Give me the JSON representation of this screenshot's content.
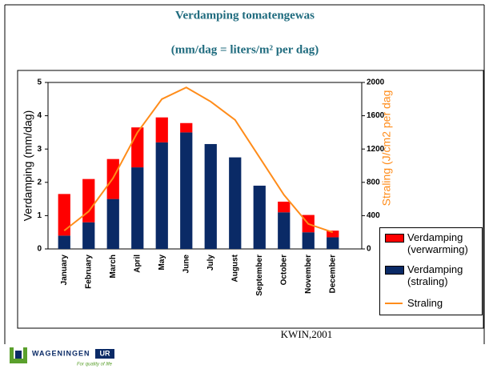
{
  "chart_data": {
    "type": "bar",
    "stacked": true,
    "title": "Verdamping tomatengewas",
    "subtitle": "(mm/dag = liters/m² per dag)",
    "ylabel": "Verdamping (mm/dag)",
    "y2label": "Straling (J/cm2 per dag",
    "categories": [
      "January",
      "February",
      "March",
      "April",
      "May",
      "June",
      "July",
      "August",
      "September",
      "October",
      "November",
      "December"
    ],
    "series": [
      {
        "name": "Verdamping (straling)",
        "color": "#0a2a66",
        "values": [
          0.4,
          0.8,
          1.5,
          2.45,
          3.2,
          3.5,
          3.15,
          2.75,
          1.9,
          1.1,
          0.5,
          0.35
        ]
      },
      {
        "name": "Verdamping (verwarming)",
        "color": "#ff0000",
        "values": [
          1.25,
          1.3,
          1.2,
          1.2,
          0.75,
          0.28,
          0,
          0,
          0,
          0.32,
          0.52,
          0.2
        ]
      },
      {
        "name": "Straling",
        "color": "#ff8c1a",
        "type": "line",
        "axis": "y2",
        "values": [
          220,
          450,
          850,
          1400,
          1800,
          1940,
          1770,
          1550,
          1100,
          650,
          300,
          200
        ]
      }
    ],
    "legend_order": [
      1,
      0,
      2
    ],
    "ylim": [
      0,
      5
    ],
    "yticks": [
      0,
      1,
      2,
      3,
      4,
      5
    ],
    "y2lim": [
      0,
      2000
    ],
    "y2ticks": [
      0,
      400,
      800,
      1200,
      1600,
      2000
    ],
    "source": "KWIN,2001"
  },
  "logo": {
    "text": "WAGENINGEN",
    "badge": "UR",
    "tagline": "For quality of life"
  }
}
